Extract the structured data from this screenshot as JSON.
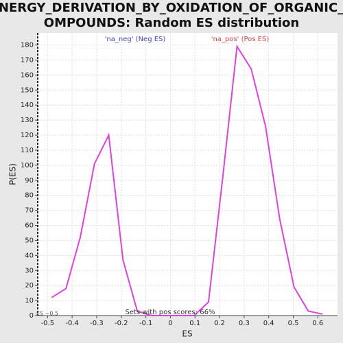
{
  "chart_data": {
    "type": "line",
    "title": [
      "ENERGY_DERIVATION_BY_OXIDATION_OF_ORGANIC_C",
      "OMPOUNDS: Random ES distribution"
    ],
    "x_label": "ES",
    "y_label": "P(ES)",
    "annotations": [
      {
        "text": "'na_neg' (Neg ES)",
        "color": "#4040d0"
      },
      {
        "text": "'na_pos' (Pos ES)",
        "color": "#e04040"
      },
      {
        "text": "ES −0.5",
        "color": "#555555"
      },
      {
        "text": "Sets with pos scores: 66%",
        "color": "#333333"
      }
    ],
    "x": [
      -0.483,
      -0.425,
      -0.367,
      -0.309,
      -0.251,
      -0.193,
      -0.135,
      -0.077,
      -0.019,
      0.039,
      0.097,
      0.155,
      0.213,
      0.271,
      0.329,
      0.387,
      0.445,
      0.503,
      0.561,
      0.619
    ],
    "series": [
      {
        "name": "P(ES)",
        "color": "#e040e0",
        "values": [
          12,
          18,
          52,
          101,
          120,
          37,
          3,
          0,
          0,
          0,
          0,
          9,
          92,
          179,
          164,
          126,
          64,
          19,
          3,
          1
        ]
      }
    ],
    "xlim": [
      -0.54,
      0.68
    ],
    "ylim": [
      0,
      188
    ],
    "xticks": [
      -0.5,
      -0.4,
      -0.3,
      -0.2,
      -0.1,
      0,
      0.1,
      0.2,
      0.3,
      0.4,
      0.5,
      0.6
    ],
    "yticks": [
      0,
      10,
      20,
      30,
      40,
      50,
      60,
      70,
      80,
      90,
      100,
      110,
      120,
      130,
      140,
      150,
      160,
      170,
      180
    ],
    "grid": true
  }
}
